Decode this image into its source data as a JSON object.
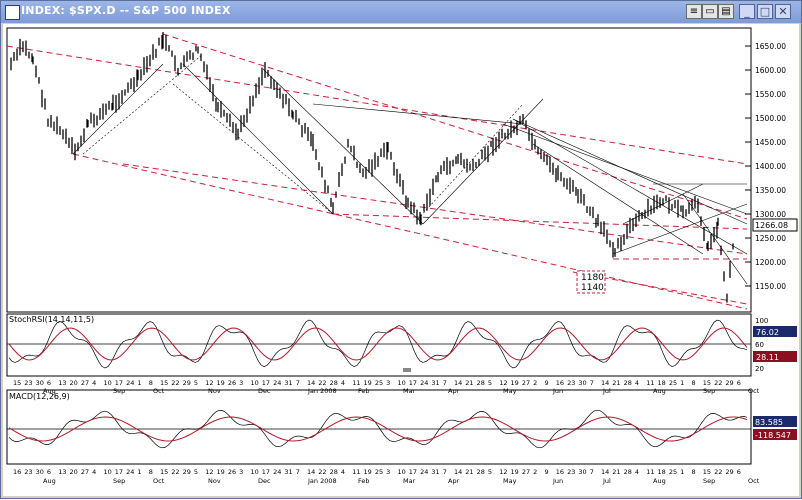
{
  "window": {
    "title": "INDEX: $SPX.D -- S&P 500 INDEX",
    "buttons": [
      "minimize",
      "restore",
      "close"
    ]
  },
  "price_panel": {
    "price_ticks": [
      "1650.00",
      "1600.00",
      "1550.00",
      "1500.00",
      "1450.00",
      "1400.00",
      "1350.00",
      "1300.00",
      "1250.00",
      "1200.00",
      "1150.00"
    ],
    "current_price": "1266.08",
    "annotations": [
      "1180",
      "1140"
    ]
  },
  "stoch_panel": {
    "label": "StochRSI(14,14,11,5)",
    "ticks": [
      "100",
      "60",
      "20"
    ],
    "value_1": "76.02",
    "value_2": "28.11"
  },
  "macd_panel": {
    "label": "MACD(12,26,9)",
    "value_1": "83.585",
    "value_2": "-118.547"
  },
  "date_axis_1": {
    "days": [
      "15",
      "23",
      "30",
      "6",
      "13",
      "20",
      "27",
      "4",
      "10",
      "17",
      "24",
      "1",
      "8",
      "15",
      "22",
      "29",
      "5",
      "12",
      "19",
      "26",
      "3",
      "10",
      "17",
      "24",
      "31",
      "7",
      "14",
      "22",
      "28",
      "4",
      "11",
      "19",
      "25",
      "3",
      "10",
      "17",
      "24",
      "31",
      "7",
      "14",
      "21",
      "28",
      "5",
      "12",
      "19",
      "27",
      "2",
      "9",
      "16",
      "23",
      "30",
      "7",
      "14",
      "21",
      "28",
      "4",
      "11",
      "18",
      "25",
      "1",
      "8",
      "15",
      "22",
      "29",
      "6"
    ],
    "months": [
      "Aug",
      "Sep",
      "Oct",
      "Nov",
      "Dec",
      "Jan 2008",
      "Feb",
      "Mar",
      "Apr",
      "May",
      "Jun",
      "Jul",
      "Aug",
      "Sep",
      "Oct"
    ]
  },
  "date_axis_2": {
    "days": [
      "16",
      "23",
      "30",
      "6",
      "13",
      "20",
      "27",
      "4",
      "10",
      "17",
      "24",
      "1",
      "8",
      "15",
      "22",
      "29",
      "5",
      "12",
      "19",
      "26",
      "3",
      "10",
      "17",
      "24",
      "31",
      "7",
      "14",
      "22",
      "28",
      "4",
      "11",
      "19",
      "25",
      "3",
      "10",
      "17",
      "24",
      "31",
      "7",
      "14",
      "21",
      "28",
      "5",
      "12",
      "19",
      "27",
      "2",
      "9",
      "16",
      "23",
      "30",
      "7",
      "14",
      "21",
      "28",
      "4",
      "11",
      "18",
      "25",
      "1",
      "8",
      "15",
      "22",
      "29",
      "6"
    ],
    "months": [
      "Aug",
      "Sep",
      "Oct",
      "Nov",
      "Dec",
      "Jan 2008",
      "Feb",
      "Mar",
      "Apr",
      "May",
      "Jun",
      "Jul",
      "Aug",
      "Sep",
      "Oct"
    ]
  },
  "colors": {
    "price_bar": "#000000",
    "trend_red": "#c8203a",
    "stoch_line": "#b01828",
    "macd_signal": "#b01828",
    "value_box_dark": "#1a2a6a",
    "value_box_red": "#8a1020"
  },
  "icons": [
    "app-icon",
    "minimize-icon",
    "restore-icon",
    "close-icon"
  ]
}
